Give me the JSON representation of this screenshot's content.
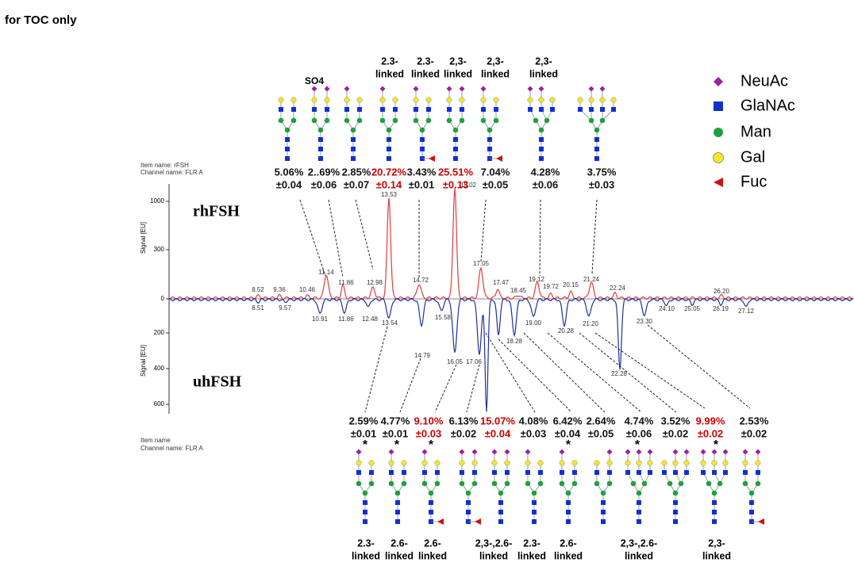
{
  "toc_note": "for TOC only",
  "highlight_color": "#cc0000",
  "legend": [
    "NeuAc",
    "GlaNAc",
    "Man",
    "Gal",
    "Fuc"
  ],
  "top": {
    "item_name": "Item name: rFSH",
    "channel_name": "Channel name: FLR A",
    "sample": "rhFSH",
    "y_axis_title": "Signal [EU]",
    "yticks": [
      "1000",
      "300",
      "0"
    ],
    "modification": "SO4",
    "peaks": [
      "8.52",
      "9.36",
      "10.46",
      "11.14",
      "11.86",
      "12.98",
      "13.53",
      "14.72",
      "15.02",
      "17.05",
      "17.47",
      "18.45",
      "19.12",
      "19.72",
      "20.15",
      "21.24",
      "22.24",
      "26.20"
    ],
    "percents": [
      {
        "value": "5.06%",
        "sd": "±0.04",
        "highlight": false
      },
      {
        "value": "2..69%",
        "sd": "±0.06",
        "highlight": false
      },
      {
        "value": "2.85%",
        "sd": "±0.07",
        "highlight": false
      },
      {
        "value": "20.72%",
        "sd": "±0.14",
        "highlight": true
      },
      {
        "value": "3.43%",
        "sd": "±0.01",
        "highlight": false
      },
      {
        "value": "25.51%",
        "sd": "±0.13",
        "highlight": true
      },
      {
        "value": "7.04%",
        "sd": "±0.05",
        "highlight": false
      },
      {
        "value": "4.28%",
        "sd": "±0.06",
        "highlight": false
      },
      {
        "value": "3.75%",
        "sd": "±0.03",
        "highlight": false
      }
    ],
    "linkages": [
      [
        "2.3-",
        "linked"
      ],
      [
        "2.3-",
        "linked"
      ],
      [
        "2,3-",
        "linked"
      ],
      [
        "2,3-",
        "linked"
      ],
      [
        "2,3-",
        "linked"
      ]
    ]
  },
  "bottom": {
    "item_name": "Item name",
    "channel_name": "Channel name: FLR A",
    "sample": "uhFSH",
    "y_axis_title": "Signal [EU]",
    "yticks": [
      "200",
      "400",
      "600"
    ],
    "peaks": [
      "8.51",
      "9.57",
      "10.91",
      "11.86",
      "12.48",
      "13.54",
      "14.79",
      "15.58",
      "16.05",
      "17.06",
      "18.28",
      "19.00",
      "20.28",
      "21.20",
      "22.28",
      "23.30",
      "24.10",
      "25.05",
      "26.19",
      "27.12"
    ],
    "percents": [
      {
        "value": "2.59%",
        "sd": "±0.01",
        "highlight": false
      },
      {
        "value": "4.77%",
        "sd": "±0.01",
        "highlight": false
      },
      {
        "value": "9.10%",
        "sd": "±0.03",
        "highlight": true
      },
      {
        "value": "6.13%",
        "sd": "±0.02",
        "highlight": false
      },
      {
        "value": "15.07%",
        "sd": "±0.04",
        "highlight": true
      },
      {
        "value": "4.08%",
        "sd": "±0.03",
        "highlight": false
      },
      {
        "value": "6.42%",
        "sd": "±0.04",
        "highlight": false
      },
      {
        "value": "2.64%",
        "sd": "±0.05",
        "highlight": false
      },
      {
        "value": "4.74%",
        "sd": "±0.06",
        "highlight": false
      },
      {
        "value": "3.52%",
        "sd": "±0.02",
        "highlight": false
      },
      {
        "value": "9.99%",
        "sd": "±0.02",
        "highlight": true
      },
      {
        "value": "2.53%",
        "sd": "±0.02",
        "highlight": false
      }
    ],
    "asterisk": "*",
    "linkages": [
      [
        "2.3-",
        "linked"
      ],
      [
        "2.6-",
        "linked"
      ],
      [
        "2.6-",
        "linked"
      ],
      [
        "2,3-,2.6-",
        "linked"
      ],
      [
        "2.3-",
        "linked"
      ],
      [
        "2.6-",
        "linked"
      ],
      [
        "2,3-,2.6-",
        "linked"
      ],
      [
        "2,3-",
        "linked"
      ]
    ]
  }
}
